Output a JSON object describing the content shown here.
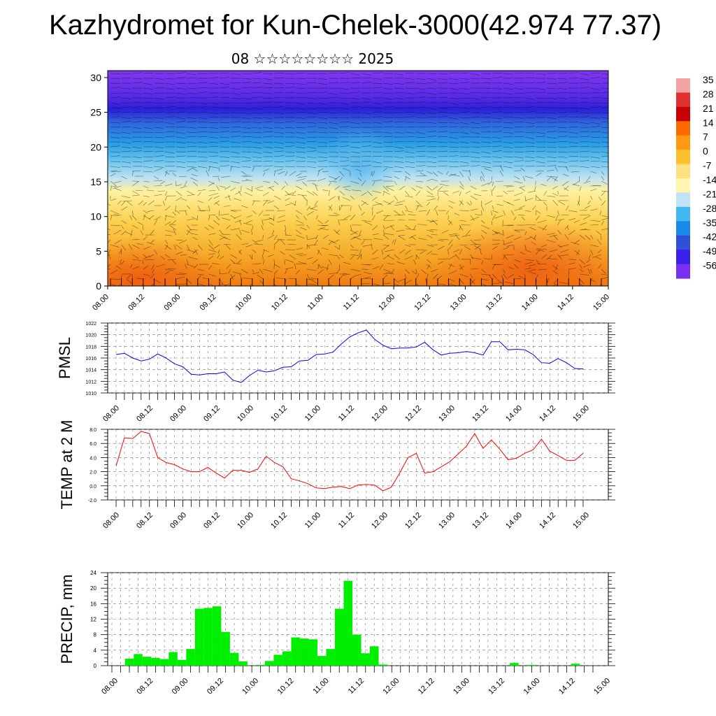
{
  "title": "Kazhydromet for Kun-Chelek-3000(42.974 77.37)",
  "subtitle": "08 ☆☆☆☆☆☆☆☆ 2025",
  "time_labels": [
    "08.00",
    "08.12",
    "09.00",
    "09.12",
    "10.00",
    "10.12",
    "11.00",
    "11.12",
    "12.00",
    "12.12",
    "13.00",
    "13.12",
    "14.00",
    "14.12",
    "15.00"
  ],
  "chart_data": [
    {
      "type": "heatmap",
      "name": "temperature-wind-cross-section",
      "x_ticks": [
        "08.00",
        "08.12",
        "09.00",
        "09.12",
        "10.00",
        "10.12",
        "11.00",
        "11.12",
        "12.00",
        "12.12",
        "13.00",
        "13.12",
        "14.00",
        "14.12",
        "15.00"
      ],
      "y_ticks": [
        "0",
        "5",
        "10",
        "15",
        "20",
        "25",
        "30"
      ],
      "ylim": [
        0,
        31
      ],
      "colorbar_labels": [
        "35",
        "28",
        "21",
        "14",
        "7",
        "0",
        "-7",
        "-14",
        "-21",
        "-28",
        "-35",
        "-42",
        "-49",
        "-56"
      ],
      "colors": [
        "#f4a3a3",
        "#e03030",
        "#c80000",
        "#ff6a00",
        "#ff9a10",
        "#ffc030",
        "#ffe080",
        "#fff4b0",
        "#c0e4f4",
        "#40b8f0",
        "#1a8ae8",
        "#3050d8",
        "#3a20e8",
        "#7a30f0"
      ],
      "temperature_profile_description_levels": [
        0,
        5,
        10,
        15,
        20,
        25,
        30
      ],
      "temperature_profile_values": [
        2,
        -2,
        -7,
        -14,
        -30,
        -48,
        -56
      ]
    },
    {
      "type": "line",
      "ylabel": "PMSL",
      "ylim": [
        1010,
        1022
      ],
      "y_ticks": [
        "1010",
        "1012",
        "1014",
        "1016",
        "1018",
        "1020",
        "1022"
      ],
      "x_ticks": [
        "08.00",
        "08.12",
        "09.00",
        "09.12",
        "10.00",
        "10.12",
        "11.00",
        "11.12",
        "12.00",
        "12.12",
        "13.00",
        "13.12",
        "14.00",
        "14.12",
        "15.00"
      ],
      "color": "#0000ff",
      "values": [
        1016.6,
        1016.8,
        1016.0,
        1015.5,
        1015.8,
        1016.7,
        1016.0,
        1015.0,
        1014.5,
        1013.2,
        1013.1,
        1013.3,
        1013.3,
        1013.6,
        1012.2,
        1011.8,
        1013.0,
        1013.9,
        1013.6,
        1013.8,
        1014.4,
        1014.5,
        1015.5,
        1015.6,
        1016.6,
        1016.7,
        1017.0,
        1018.4,
        1019.6,
        1020.3,
        1020.8,
        1019.2,
        1018.2,
        1017.6,
        1017.7,
        1017.7,
        1017.9,
        1018.7,
        1017.4,
        1016.5,
        1016.8,
        1016.9,
        1017.1,
        1016.9,
        1016.5,
        1018.8,
        1018.8,
        1017.4,
        1017.5,
        1017.4,
        1016.6,
        1015.2,
        1015.1,
        1015.9,
        1015.2,
        1014.2,
        1014.1
      ]
    },
    {
      "type": "line",
      "ylabel": "TEMP at 2 M",
      "ylim": [
        -2.0,
        8.0
      ],
      "y_ticks": [
        "-2.0",
        "0.0",
        "2.0",
        "4.0",
        "6.0",
        "8.0"
      ],
      "x_ticks": [
        "08.00",
        "08.12",
        "09.00",
        "09.12",
        "10.00",
        "10.12",
        "11.00",
        "11.12",
        "12.00",
        "12.12",
        "13.00",
        "13.12",
        "14.00",
        "14.12",
        "15.00"
      ],
      "color": "#ff0000",
      "values": [
        2.8,
        6.8,
        6.7,
        7.7,
        7.4,
        4.0,
        3.3,
        3.0,
        2.4,
        2.0,
        2.0,
        2.6,
        1.8,
        1.1,
        2.2,
        2.2,
        1.9,
        2.4,
        4.2,
        3.3,
        2.7,
        1.0,
        0.7,
        0.3,
        -0.3,
        -0.4,
        -0.2,
        -0.1,
        -0.4,
        0.1,
        0.2,
        0.1,
        -0.7,
        -0.2,
        1.8,
        4.0,
        4.6,
        1.8,
        2.0,
        2.7,
        3.4,
        4.5,
        5.6,
        7.4,
        5.3,
        6.5,
        5.2,
        3.7,
        3.9,
        4.6,
        5.1,
        6.6,
        4.9,
        4.3,
        3.6,
        3.6,
        4.6
      ]
    },
    {
      "type": "bar",
      "ylabel": "PRECIP, mm",
      "ylim": [
        0,
        24
      ],
      "y_ticks": [
        "0",
        "4",
        "8",
        "12",
        "16",
        "20",
        "24"
      ],
      "x_ticks": [
        "08.00",
        "08.12",
        "09.00",
        "09.12",
        "10.00",
        "10.12",
        "11.00",
        "11.12",
        "12.00",
        "12.12",
        "13.00",
        "13.12",
        "14.00",
        "14.12",
        "15.00"
      ],
      "color": "#00ee00",
      "values": [
        0,
        0,
        1.8,
        3.0,
        2.3,
        2.0,
        1.7,
        3.5,
        1.5,
        4.3,
        14.7,
        14.9,
        15.3,
        8.7,
        3.3,
        1.1,
        0,
        0.2,
        1.2,
        2.8,
        3.7,
        7.3,
        7.0,
        6.8,
        2.5,
        4.3,
        14.7,
        21.9,
        8.0,
        3.2,
        5.0,
        0.3,
        0,
        0,
        0,
        0,
        0,
        0,
        0,
        0,
        0,
        0,
        0,
        0,
        0,
        0,
        0.7,
        0,
        0.2,
        0,
        0,
        0,
        0,
        0.5,
        0,
        0
      ]
    }
  ]
}
